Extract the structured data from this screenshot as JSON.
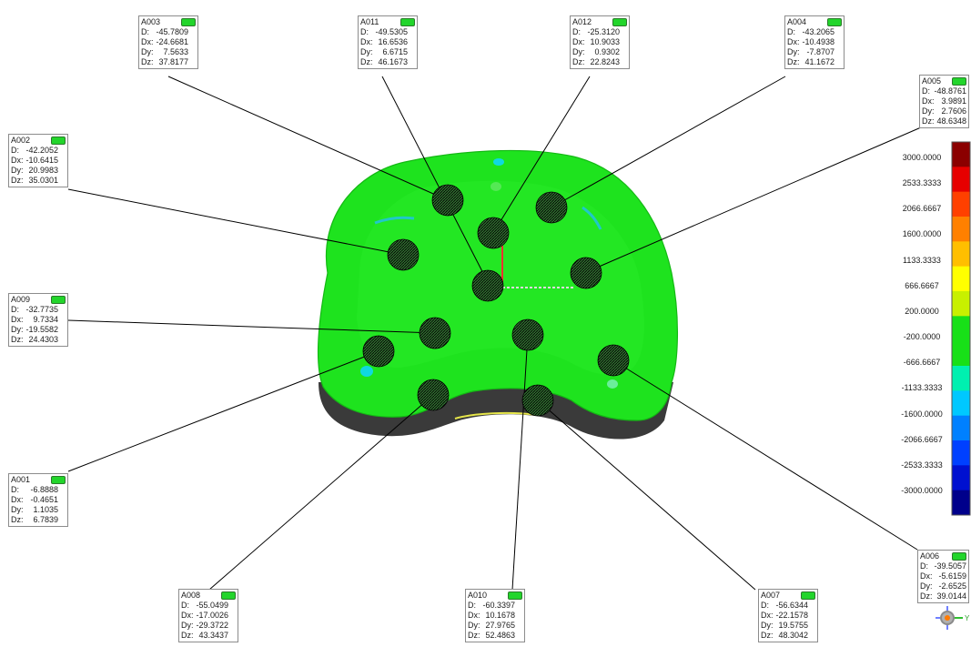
{
  "colors": {
    "mesh": "#1ee31e",
    "probe_flag": "#22d52b",
    "leader_line": "#000000",
    "scale_stops": [
      "#8b0000",
      "#e60000",
      "#ff4000",
      "#ff8000",
      "#ffbf00",
      "#ffff00",
      "#c8f000",
      "#18e018",
      "#18e018",
      "#00f0b0",
      "#00c8ff",
      "#0080ff",
      "#0040ff",
      "#0010d0",
      "#00008b"
    ]
  },
  "field_labels": {
    "d": "D:",
    "dx": "Dx:",
    "dy": "Dy:",
    "dz": "Dz:"
  },
  "probes": [
    {
      "id": "A003",
      "d": "-45.7809",
      "dx": "-24.6681",
      "dy": "7.5633",
      "dz": "37.8177"
    },
    {
      "id": "A011",
      "d": "-49.5305",
      "dx": "16.6536",
      "dy": "6.6715",
      "dz": "46.1673"
    },
    {
      "id": "A012",
      "d": "-25.3120",
      "dx": "10.9033",
      "dy": "0.9302",
      "dz": "22.8243"
    },
    {
      "id": "A004",
      "d": "-43.2065",
      "dx": "-10.4938",
      "dy": "-7.8707",
      "dz": "41.1672"
    },
    {
      "id": "A005",
      "d": "-48.8761",
      "dx": "3.9891",
      "dy": "2.7606",
      "dz": "48.6348"
    },
    {
      "id": "A002",
      "d": "-42.2052",
      "dx": "-10.6415",
      "dy": "20.9983",
      "dz": "35.0301"
    },
    {
      "id": "A009",
      "d": "-32.7735",
      "dx": "9.7334",
      "dy": "-19.5582",
      "dz": "24.4303"
    },
    {
      "id": "A001",
      "d": "-6.8888",
      "dx": "-0.4651",
      "dy": "1.1035",
      "dz": "6.7839"
    },
    {
      "id": "A006",
      "d": "-39.5057",
      "dx": "-5.6159",
      "dy": "-2.6525",
      "dz": "39.0144"
    },
    {
      "id": "A008",
      "d": "-55.0499",
      "dx": "-17.0026",
      "dy": "-29.3722",
      "dz": "43.3437"
    },
    {
      "id": "A010",
      "d": "-60.3397",
      "dx": "10.1678",
      "dy": "27.9765",
      "dz": "52.4863"
    },
    {
      "id": "A007",
      "d": "-56.6344",
      "dx": "-22.1578",
      "dy": "19.5755",
      "dz": "48.3042"
    }
  ],
  "color_scale": {
    "ticks": [
      "3000.0000",
      "2533.3333",
      "2066.6667",
      "1600.0000",
      "1133.3333",
      "666.6667",
      "200.0000",
      "-200.0000",
      "-666.6667",
      "-1133.3333",
      "-1600.0000",
      "-2066.6667",
      "-2533.3333",
      "-3000.0000"
    ]
  },
  "axis_triad": {
    "y_label": "Y"
  }
}
